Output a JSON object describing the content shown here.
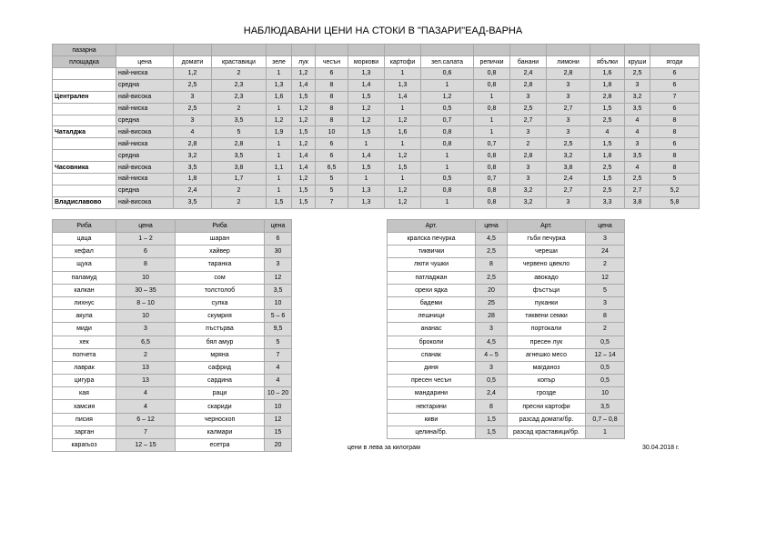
{
  "title": "НАБЛЮДАВАНИ ЦЕНИ НА СТОКИ В \"ПАЗАРИ\"ЕАД-ВАРНА",
  "main_table": {
    "market_header": [
      "пазарна",
      "площадка"
    ],
    "header": [
      "цена",
      "домати",
      "краставици",
      "зеле",
      "лук",
      "чесън",
      "моркови",
      "картофи",
      "зел.салата",
      "репички",
      "банани",
      "лимони",
      "ябълки",
      "круши",
      "ягоди"
    ],
    "blocks": [
      {
        "market": "Централен",
        "rows": [
          [
            "най-ниска",
            "1,2",
            "2",
            "1",
            "1,2",
            "6",
            "1,3",
            "1",
            "0,6",
            "0,8",
            "2,4",
            "2,8",
            "1,6",
            "2,5",
            "6"
          ],
          [
            "средна",
            "2,5",
            "2,3",
            "1,3",
            "1,4",
            "8",
            "1,4",
            "1,3",
            "1",
            "0,8",
            "2,8",
            "3",
            "1,8",
            "3",
            "6"
          ],
          [
            "най-висока",
            "3",
            "2,3",
            "1,6",
            "1,5",
            "8",
            "1,5",
            "1,4",
            "1,2",
            "1",
            "3",
            "3",
            "2,8",
            "3,2",
            "7"
          ]
        ]
      },
      {
        "market": "Чаталджа",
        "rows": [
          [
            "най-ниска",
            "2,5",
            "2",
            "1",
            "1,2",
            "8",
            "1,2",
            "1",
            "0,5",
            "0,8",
            "2,5",
            "2,7",
            "1,5",
            "3,5",
            "6"
          ],
          [
            "средна",
            "3",
            "3,5",
            "1,2",
            "1,2",
            "8",
            "1,2",
            "1,2",
            "0,7",
            "1",
            "2,7",
            "3",
            "2,5",
            "4",
            "8"
          ],
          [
            "най-висока",
            "4",
            "5",
            "1,9",
            "1,5",
            "10",
            "1,5",
            "1,6",
            "0,8",
            "1",
            "3",
            "3",
            "4",
            "4",
            "8"
          ]
        ]
      },
      {
        "market": "Часовника",
        "rows": [
          [
            "най-ниска",
            "2,8",
            "2,8",
            "1",
            "1,2",
            "6",
            "1",
            "1",
            "0,8",
            "0,7",
            "2",
            "2,5",
            "1,5",
            "3",
            "6"
          ],
          [
            "средна",
            "3,2",
            "3,5",
            "1",
            "1,4",
            "6",
            "1,4",
            "1,2",
            "1",
            "0,8",
            "2,8",
            "3,2",
            "1,8",
            "3,5",
            "8"
          ],
          [
            "най-висока",
            "3,5",
            "3,8",
            "1,1",
            "1,4",
            "6,5",
            "1,5",
            "1,5",
            "1",
            "0,8",
            "3",
            "3,8",
            "2,5",
            "4",
            "8"
          ]
        ]
      },
      {
        "market": "Владиславово",
        "rows": [
          [
            "най-ниска",
            "1,8",
            "1,7",
            "1",
            "1,2",
            "5",
            "1",
            "1",
            "0,5",
            "0,7",
            "3",
            "2,4",
            "1,5",
            "2,5",
            "5"
          ],
          [
            "средна",
            "2,4",
            "2",
            "1",
            "1,5",
            "5",
            "1,3",
            "1,2",
            "0,8",
            "0,8",
            "3,2",
            "2,7",
            "2,5",
            "2,7",
            "5,2"
          ],
          [
            "най-висока",
            "3,5",
            "2",
            "1,5",
            "1,5",
            "7",
            "1,3",
            "1,2",
            "1",
            "0,8",
            "3,2",
            "3",
            "3,3",
            "3,8",
            "5,8"
          ]
        ]
      }
    ]
  },
  "fish_table": {
    "header": [
      "Риба",
      "цена",
      "Риба",
      "цена"
    ],
    "rows": [
      [
        "цаца",
        "1 – 2",
        "шаран",
        "6"
      ],
      [
        "кефал",
        "6",
        "хайвер",
        "30"
      ],
      [
        "щука",
        "8",
        "таранка",
        "3"
      ],
      [
        "паламуд",
        "10",
        "сом",
        "12"
      ],
      [
        "калкан",
        "30 – 35",
        "толстолоб",
        "3,5"
      ],
      [
        "лихнус",
        "8 – 10",
        "сулка",
        "10"
      ],
      [
        "акула",
        "10",
        "скумрия",
        "5 – 6"
      ],
      [
        "миди",
        "3",
        "пъстърва",
        "9,5"
      ],
      [
        "хек",
        "6,5",
        "бял амур",
        "5"
      ],
      [
        "попчета",
        "2",
        "мряна",
        "7"
      ],
      [
        "лаврак",
        "13",
        "сафрид",
        "4"
      ],
      [
        "цигура",
        "13",
        "сардина",
        "4"
      ],
      [
        "кая",
        "4",
        "раци",
        "10 – 20"
      ],
      [
        "хамсия",
        "4",
        "скариди",
        "10"
      ],
      [
        "писия",
        "6 – 12",
        "черноскоп",
        "12"
      ],
      [
        "зарган",
        "7",
        "калмари",
        "15"
      ],
      [
        "карагьоз",
        "12 – 15",
        "есетра",
        "20"
      ]
    ]
  },
  "goods_table": {
    "header": [
      "Арт.",
      "цена",
      "Арт.",
      "цена"
    ],
    "rows": [
      [
        "кралска печурка",
        "4,5",
        "гъби печурка",
        "3"
      ],
      [
        "тиквички",
        "2,5",
        "череши",
        "24"
      ],
      [
        "люти чушки",
        "8",
        "червено цвекло",
        "2"
      ],
      [
        "патладжан",
        "2,5",
        "авокадо",
        "12"
      ],
      [
        "орехи ядка",
        "20",
        "фъстъци",
        "5"
      ],
      [
        "бадеми",
        "25",
        "пуканки",
        "3"
      ],
      [
        "лешници",
        "28",
        "тиквени семки",
        "8"
      ],
      [
        "ананас",
        "3",
        "портокали",
        "2"
      ],
      [
        "броколи",
        "4,5",
        "пресен лук",
        "0,5"
      ],
      [
        "спанак",
        "4 – 5",
        "агнешко месо",
        "12 – 14"
      ],
      [
        "диня",
        "3",
        "магданоз",
        "0,5"
      ],
      [
        "пресен чесън",
        "0,5",
        "копър",
        "0,5"
      ],
      [
        "мандарини",
        "2,4",
        "грозде",
        "10"
      ],
      [
        "нектарини",
        "8",
        "пресни картофи",
        "3,5"
      ],
      [
        "киви",
        "1,5",
        "разсад домати/бр.",
        "0,7 – 0,8"
      ],
      [
        "целина/бр.",
        "1,5",
        "разсад краставици/бр.",
        "1"
      ]
    ]
  },
  "note": "цени в лева за килограм",
  "date": "30.04.2018 г."
}
